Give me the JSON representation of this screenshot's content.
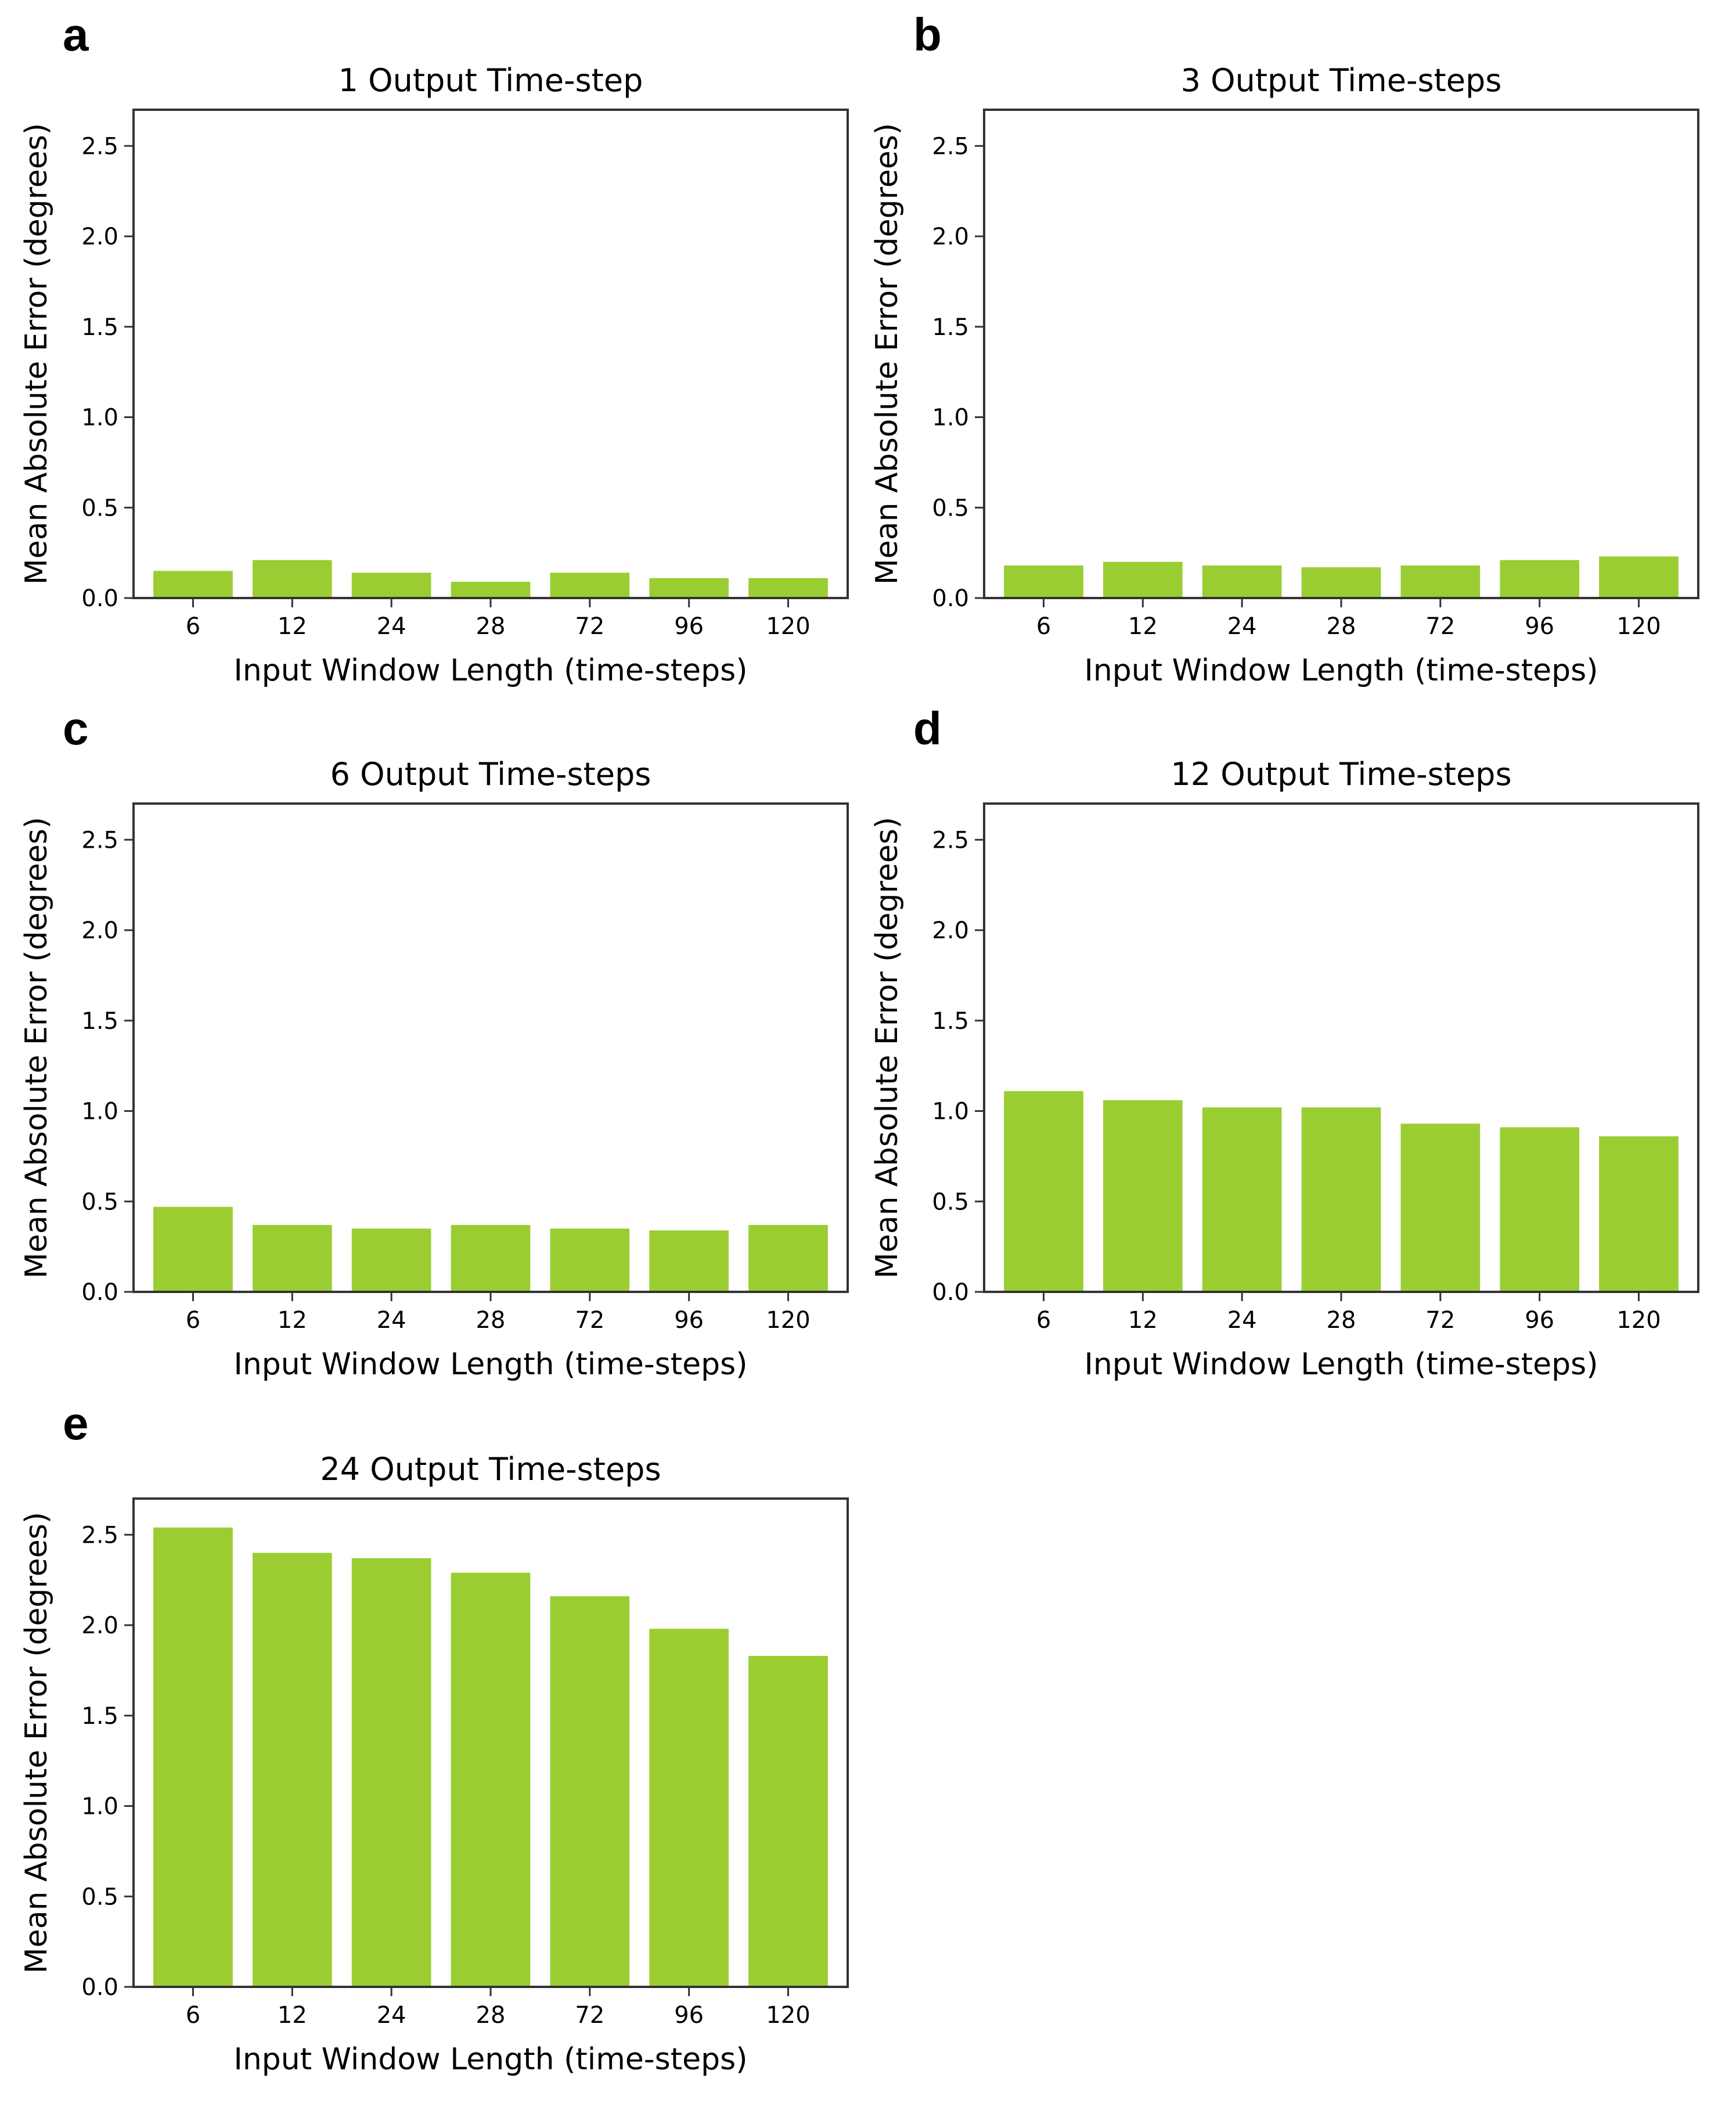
{
  "colors": {
    "bar": "#9acd32",
    "axis": "#333333"
  },
  "chart_data": [
    {
      "type": "bar",
      "panel": "a",
      "title": "1 Output Time-step",
      "xlabel": "Input Window Length (time-steps)",
      "ylabel": "Mean Absolute Error (degrees)",
      "categories": [
        "6",
        "12",
        "24",
        "28",
        "72",
        "96",
        "120"
      ],
      "values": [
        0.15,
        0.21,
        0.14,
        0.09,
        0.14,
        0.11,
        0.11
      ],
      "ylim": [
        0,
        2.7
      ],
      "yticks": [
        "0.0",
        "0.5",
        "1.0",
        "1.5",
        "2.0",
        "2.5"
      ],
      "grid": false
    },
    {
      "type": "bar",
      "panel": "b",
      "title": "3 Output Time-steps",
      "xlabel": "Input Window Length (time-steps)",
      "ylabel": "Mean Absolute Error (degrees)",
      "categories": [
        "6",
        "12",
        "24",
        "28",
        "72",
        "96",
        "120"
      ],
      "values": [
        0.18,
        0.2,
        0.18,
        0.17,
        0.18,
        0.21,
        0.23
      ],
      "ylim": [
        0,
        2.7
      ],
      "yticks": [
        "0.0",
        "0.5",
        "1.0",
        "1.5",
        "2.0",
        "2.5"
      ],
      "grid": false
    },
    {
      "type": "bar",
      "panel": "c",
      "title": "6 Output Time-steps",
      "xlabel": "Input Window Length (time-steps)",
      "ylabel": "Mean Absolute Error (degrees)",
      "categories": [
        "6",
        "12",
        "24",
        "28",
        "72",
        "96",
        "120"
      ],
      "values": [
        0.47,
        0.37,
        0.35,
        0.37,
        0.35,
        0.34,
        0.37
      ],
      "ylim": [
        0,
        2.7
      ],
      "yticks": [
        "0.0",
        "0.5",
        "1.0",
        "1.5",
        "2.0",
        "2.5"
      ],
      "grid": false
    },
    {
      "type": "bar",
      "panel": "d",
      "title": "12 Output Time-steps",
      "xlabel": "Input Window Length (time-steps)",
      "ylabel": "Mean Absolute Error (degrees)",
      "categories": [
        "6",
        "12",
        "24",
        "28",
        "72",
        "96",
        "120"
      ],
      "values": [
        1.11,
        1.06,
        1.02,
        1.02,
        0.93,
        0.91,
        0.86
      ],
      "ylim": [
        0,
        2.7
      ],
      "yticks": [
        "0.0",
        "0.5",
        "1.0",
        "1.5",
        "2.0",
        "2.5"
      ],
      "grid": false
    },
    {
      "type": "bar",
      "panel": "e",
      "title": "24 Output Time-steps",
      "xlabel": "Input Window Length (time-steps)",
      "ylabel": "Mean Absolute Error (degrees)",
      "categories": [
        "6",
        "12",
        "24",
        "28",
        "72",
        "96",
        "120"
      ],
      "values": [
        2.54,
        2.4,
        2.37,
        2.29,
        2.16,
        1.98,
        1.83
      ],
      "ylim": [
        0,
        2.7
      ],
      "yticks": [
        "0.0",
        "0.5",
        "1.0",
        "1.5",
        "2.0",
        "2.5"
      ],
      "grid": false
    }
  ]
}
